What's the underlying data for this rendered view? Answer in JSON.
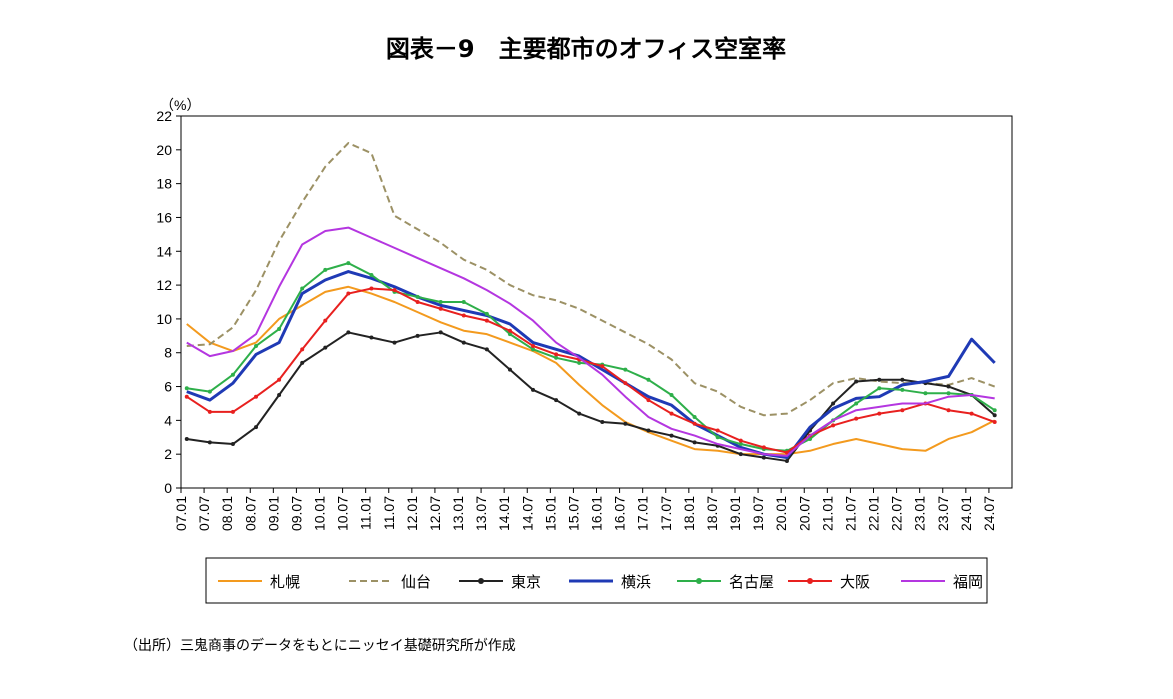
{
  "chart_data": {
    "type": "line",
    "title": "図表－9　主要都市のオフィス空室率",
    "ylabel": "（%）",
    "xlabel": "",
    "ylim": [
      0,
      22
    ],
    "yticks": [
      0,
      2,
      4,
      6,
      8,
      10,
      12,
      14,
      16,
      18,
      20,
      22
    ],
    "categories": [
      "07.01",
      "07.07",
      "08.01",
      "08.07",
      "09.01",
      "09.07",
      "10.01",
      "10.07",
      "11.01",
      "11.07",
      "12.01",
      "12.07",
      "13.01",
      "13.07",
      "14.01",
      "14.07",
      "15.01",
      "15.07",
      "16.01",
      "16.07",
      "17.01",
      "17.07",
      "18.01",
      "18.07",
      "19.01",
      "19.07",
      "20.01",
      "20.07",
      "21.01",
      "21.07",
      "22.01",
      "22.07",
      "23.01",
      "23.07",
      "24.01",
      "24.07"
    ],
    "legend_position": "bottom",
    "series": [
      {
        "name": "札幌",
        "color": "#F39A1E",
        "style": "solid",
        "marker": "none",
        "values": [
          9.7,
          8.6,
          8.1,
          8.6,
          10.0,
          10.8,
          11.6,
          11.9,
          11.5,
          11.0,
          10.4,
          9.8,
          9.3,
          9.1,
          8.6,
          8.1,
          7.4,
          6.1,
          4.9,
          3.9,
          3.3,
          2.8,
          2.3,
          2.2,
          2.0,
          2.0,
          2.0,
          2.2,
          2.6,
          2.9,
          2.6,
          2.3,
          2.2,
          2.9,
          3.3,
          4.0
        ]
      },
      {
        "name": "仙台",
        "color": "#9C9165",
        "style": "dashed",
        "marker": "none",
        "values": [
          8.4,
          8.5,
          9.5,
          11.7,
          14.6,
          16.9,
          19.0,
          20.4,
          19.8,
          16.1,
          15.3,
          14.5,
          13.5,
          12.9,
          12.0,
          11.4,
          11.1,
          10.6,
          9.9,
          9.2,
          8.5,
          7.6,
          6.2,
          5.7,
          4.8,
          4.3,
          4.4,
          5.2,
          6.2,
          6.5,
          6.3,
          6.2,
          6.2,
          6.1,
          6.5,
          6.0
        ]
      },
      {
        "name": "東京",
        "color": "#222222",
        "style": "solid",
        "marker": "dot",
        "values": [
          2.9,
          2.7,
          2.6,
          3.6,
          5.5,
          7.4,
          8.3,
          9.2,
          8.9,
          8.6,
          9.0,
          9.2,
          8.6,
          8.2,
          7.0,
          5.8,
          5.2,
          4.4,
          3.9,
          3.8,
          3.4,
          3.1,
          2.7,
          2.5,
          2.0,
          1.8,
          1.6,
          3.4,
          5.0,
          6.3,
          6.4,
          6.4,
          6.2,
          6.0,
          5.5,
          4.3
        ]
      },
      {
        "name": "横浜",
        "color": "#1F3AB5",
        "style": "solid",
        "marker": "none",
        "values": [
          5.7,
          5.2,
          6.2,
          7.9,
          8.6,
          11.5,
          12.3,
          12.8,
          12.4,
          11.9,
          11.3,
          10.8,
          10.5,
          10.2,
          9.7,
          8.6,
          8.2,
          7.8,
          7.0,
          6.2,
          5.4,
          4.9,
          3.8,
          3.1,
          2.4,
          2.0,
          1.8,
          3.6,
          4.7,
          5.3,
          5.4,
          6.1,
          6.3,
          6.6,
          8.8,
          7.4
        ]
      },
      {
        "name": "名古屋",
        "color": "#2EAF4A",
        "style": "solid",
        "marker": "dot",
        "values": [
          5.9,
          5.7,
          6.7,
          8.4,
          9.4,
          11.8,
          12.9,
          13.3,
          12.6,
          11.6,
          11.3,
          11.0,
          11.0,
          10.3,
          9.1,
          8.2,
          7.7,
          7.4,
          7.3,
          7.0,
          6.4,
          5.5,
          4.2,
          3.0,
          2.6,
          2.3,
          2.2,
          2.9,
          4.0,
          5.0,
          5.9,
          5.8,
          5.6,
          5.6,
          5.5,
          4.6
        ]
      },
      {
        "name": "大阪",
        "color": "#E8201F",
        "style": "solid",
        "marker": "dot",
        "values": [
          5.4,
          4.5,
          4.5,
          5.4,
          6.4,
          8.2,
          9.9,
          11.5,
          11.8,
          11.7,
          11.0,
          10.6,
          10.2,
          9.9,
          9.3,
          8.4,
          7.9,
          7.6,
          7.2,
          6.2,
          5.2,
          4.4,
          3.8,
          3.4,
          2.8,
          2.4,
          2.1,
          3.1,
          3.7,
          4.1,
          4.4,
          4.6,
          5.0,
          4.6,
          4.4,
          3.9
        ]
      },
      {
        "name": "福岡",
        "color": "#B436E0",
        "style": "solid",
        "marker": "none",
        "values": [
          8.6,
          7.8,
          8.1,
          9.1,
          11.9,
          14.4,
          15.2,
          15.4,
          14.8,
          14.2,
          13.6,
          13.0,
          12.4,
          11.7,
          10.9,
          9.9,
          8.6,
          7.7,
          6.7,
          5.4,
          4.2,
          3.5,
          3.1,
          2.6,
          2.3,
          2.0,
          1.9,
          3.1,
          4.0,
          4.6,
          4.8,
          5.0,
          5.0,
          5.4,
          5.5,
          5.3
        ]
      }
    ]
  },
  "source_note": "（出所）三鬼商事のデータをもとにニッセイ基礎研究所が作成"
}
